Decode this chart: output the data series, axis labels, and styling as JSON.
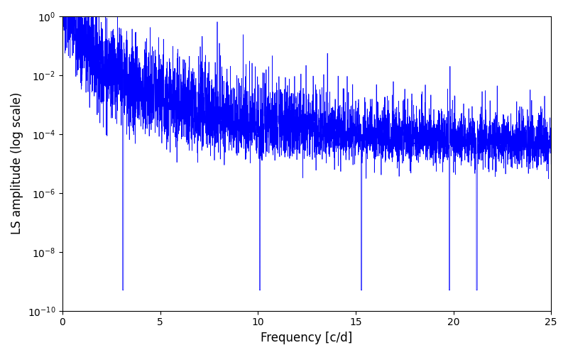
{
  "title": "",
  "xlabel": "Frequency [c/d]",
  "ylabel": "LS amplitude (log scale)",
  "xlim": [
    0,
    25
  ],
  "ylim_log": [
    1e-10,
    1.0
  ],
  "line_color": "#0000ff",
  "line_width": 0.5,
  "background_color": "#ffffff",
  "figsize": [
    8.0,
    5.0
  ],
  "dpi": 100,
  "n_points": 5000,
  "freq_max": 25.0,
  "seed": 7
}
